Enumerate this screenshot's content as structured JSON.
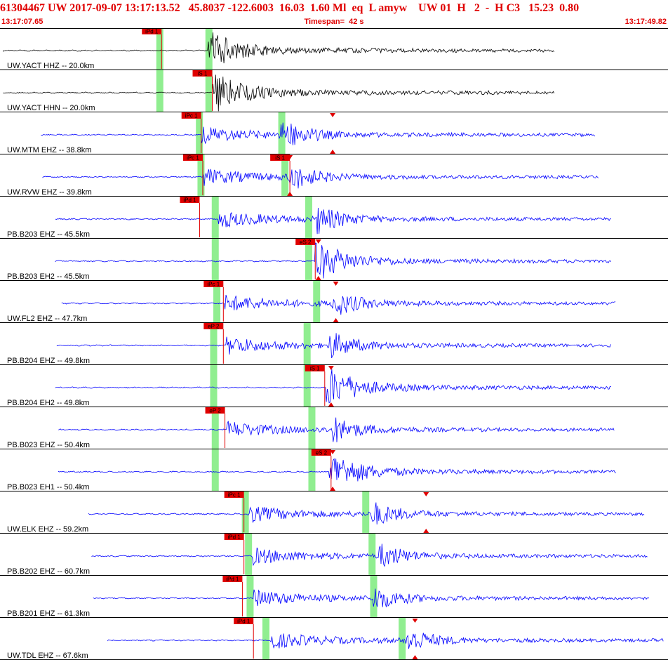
{
  "header": {
    "title": "61304467 UW 2017-09-07 13:17:13.52   45.8037 -122.6003  16.03  1.60 Ml  eq  L amyw    UW 01  H   2  -  H C3   15.23  0.80",
    "start_time": "13:17:07.65",
    "timespan": "Timespan=  42 s",
    "end_time": "13:17:49.82"
  },
  "colors": {
    "header_text": "#e00000",
    "trace_reference": "#000000",
    "trace": "#0000ff",
    "pick_flag": "#e00000",
    "pick_line": "#e00000",
    "theoretical_window": "#90ee90",
    "separator": "#000000",
    "grid_tick": "#999999"
  },
  "chart_data": {
    "type": "line",
    "title": "61304467 UW 2017-09-07 13:17:13.52   45.8037 -122.6003  16.03  1.60 Ml  eq  L amyw    UW 01  H   2  -  H C3   15.23  0.80",
    "x_unit": "seconds after 13:17:07.65",
    "xlim": [
      0,
      42.17
    ],
    "traces": [
      {
        "label": "UW.YACT HHZ -- 20.0km",
        "color": "black",
        "data_start": 0.2,
        "data_end": 35.0,
        "onset": 13.1,
        "s_onset": 13.1,
        "amp": 0.85,
        "p_green": 10.0,
        "s_green": 13.1,
        "picks": [
          {
            "label": "iPd 1",
            "time": 10.2
          }
        ]
      },
      {
        "label": "UW.YACT HHN -- 20.0km",
        "color": "black",
        "data_start": 0.2,
        "data_end": 35.0,
        "onset": 13.4,
        "s_onset": 13.4,
        "amp": 0.85,
        "p_green": 10.0,
        "s_green": 13.1,
        "picks": [
          {
            "label": "iS 1",
            "time": 13.4
          }
        ]
      },
      {
        "label": "UW.MTM EHZ -- 38.8km",
        "color": "blue",
        "data_start": 2.6,
        "data_end": 37.6,
        "onset": 12.7,
        "s_onset": 17.7,
        "amp": 0.95,
        "p_green": 12.5,
        "s_green": 17.7,
        "picks": [
          {
            "label": "iPc 1",
            "time": 12.7
          }
        ],
        "markers": [
          21.0
        ]
      },
      {
        "label": "UW.RVW EHZ -- 39.8km",
        "color": "blue",
        "data_start": 2.7,
        "data_end": 37.8,
        "onset": 12.8,
        "s_onset": 18.2,
        "amp": 0.9,
        "p_green": 12.6,
        "s_green": 17.9,
        "picks": [
          {
            "label": "iPc 1",
            "time": 12.8
          },
          {
            "label": "iS 1",
            "time": 18.3
          }
        ],
        "markers": [
          18.3
        ]
      },
      {
        "label": "PB.B203 EHZ -- 45.5km",
        "color": "blue",
        "data_start": 3.5,
        "data_end": 38.6,
        "onset": 13.8,
        "s_onset": 20.0,
        "amp": 0.9,
        "p_green": 13.5,
        "s_green": 19.4,
        "picks": [
          {
            "label": "iPd 1",
            "time": 12.6
          }
        ]
      },
      {
        "label": "PB.B203 EH2 -- 45.5km",
        "color": "blue",
        "data_start": 3.5,
        "data_end": 38.6,
        "onset": 19.9,
        "s_onset": 19.9,
        "amp": 0.8,
        "p_green": 13.5,
        "s_green": 19.4,
        "picks": [
          {
            "label": "eS 2",
            "time": 19.9
          }
        ],
        "markers": [
          20.1
        ]
      },
      {
        "label": "UW.FL2 EHZ -- 47.7km",
        "color": "blue",
        "data_start": 3.9,
        "data_end": 38.9,
        "onset": 14.2,
        "s_onset": 21.0,
        "amp": 0.85,
        "p_green": 13.6,
        "s_green": 19.9,
        "picks": [
          {
            "label": "iPc 1",
            "time": 14.1
          }
        ],
        "markers": [
          21.2
        ]
      },
      {
        "label": "PB.B204 EHZ -- 49.8km",
        "color": "blue",
        "data_start": 3.6,
        "data_end": 38.6,
        "onset": 14.3,
        "s_onset": 20.8,
        "amp": 0.85,
        "p_green": 13.4,
        "s_green": 19.3,
        "picks": [
          {
            "label": "eP 2",
            "time": 14.1
          }
        ]
      },
      {
        "label": "PB.B204 EH2 -- 49.8km",
        "color": "blue",
        "data_start": 3.5,
        "data_end": 38.6,
        "onset": 20.6,
        "s_onset": 20.6,
        "amp": 0.8,
        "p_green": 13.4,
        "s_green": 19.3,
        "picks": [
          {
            "label": "iS 1",
            "time": 20.5
          }
        ],
        "markers": [
          20.9
        ]
      },
      {
        "label": "PB.B023 EHZ -- 50.4km",
        "color": "blue",
        "data_start": 3.7,
        "data_end": 38.8,
        "onset": 14.3,
        "s_onset": 21.0,
        "amp": 0.85,
        "p_green": 13.5,
        "s_green": 19.6,
        "picks": [
          {
            "label": "eP 2",
            "time": 14.2
          }
        ]
      },
      {
        "label": "PB.B023 EH1 -- 50.4km",
        "color": "blue",
        "data_start": 3.7,
        "data_end": 38.9,
        "onset": 20.8,
        "s_onset": 20.8,
        "amp": 0.8,
        "p_green": 13.5,
        "s_green": 19.6,
        "picks": [
          {
            "label": "eS 2",
            "time": 20.9
          }
        ],
        "markers": [
          21.0
        ]
      },
      {
        "label": "UW.ELK EHZ -- 59.2km",
        "color": "blue",
        "data_start": 5.6,
        "data_end": 40.7,
        "onset": 15.6,
        "s_onset": 23.4,
        "amp": 0.85,
        "p_green": 15.4,
        "s_green": 23.0,
        "picks": [
          {
            "label": "iPc 1",
            "time": 15.4
          }
        ],
        "markers": [
          26.9
        ]
      },
      {
        "label": "PB.B202 EHZ -- 60.7km",
        "color": "blue",
        "data_start": 5.8,
        "data_end": 40.9,
        "onset": 15.9,
        "s_onset": 23.9,
        "amp": 0.85,
        "p_green": 15.6,
        "s_green": 23.4,
        "picks": [
          {
            "label": "iPd 1",
            "time": 15.4
          }
        ]
      },
      {
        "label": "PB.B201 EHZ -- 61.3km",
        "color": "blue",
        "data_start": 5.9,
        "data_end": 41.0,
        "onset": 16.0,
        "s_onset": 23.5,
        "amp": 0.85,
        "p_green": 15.7,
        "s_green": 23.5,
        "picks": [
          {
            "label": "iPd 1",
            "time": 15.3
          }
        ]
      },
      {
        "label": "UW.TDL EHZ -- 67.6km",
        "color": "blue",
        "data_start": 6.8,
        "data_end": 41.9,
        "onset": 17.0,
        "s_onset": 25.6,
        "amp": 0.9,
        "p_green": 16.7,
        "s_green": 25.3,
        "picks": [
          {
            "label": "iPd 1",
            "time": 16.0
          }
        ],
        "markers": [
          26.2
        ]
      }
    ]
  }
}
